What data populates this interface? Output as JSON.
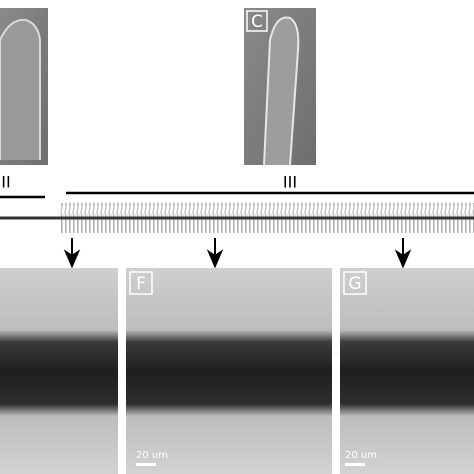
{
  "top_labels": [
    "II",
    "III"
  ],
  "panels": [
    {
      "label": "C"
    },
    {
      "label": "F",
      "scale_bar": "20 um"
    },
    {
      "label": "G",
      "scale_bar": "20 um"
    }
  ]
}
